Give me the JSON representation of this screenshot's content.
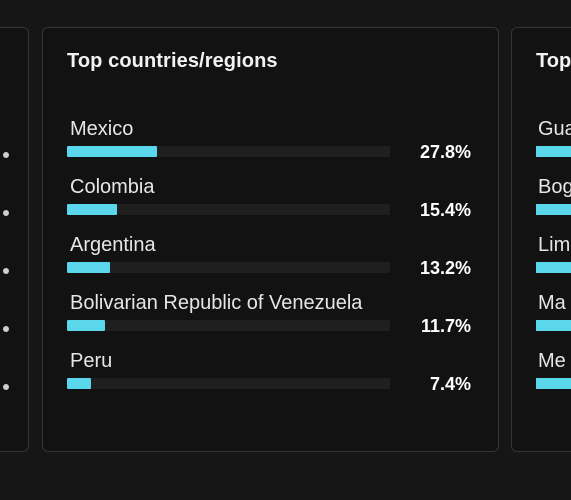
{
  "colors": {
    "accent": "#5ad7ea",
    "track": "#1f1f1f"
  },
  "main_card": {
    "title": "Top countries/regions",
    "rows": [
      {
        "label": "Mexico",
        "percent_text": "27.8%",
        "value": 27.8
      },
      {
        "label": "Colombia",
        "percent_text": "15.4%",
        "value": 15.4
      },
      {
        "label": "Argentina",
        "percent_text": "13.2%",
        "value": 13.2
      },
      {
        "label": "Bolivarian Republic of Venezuela",
        "percent_text": "11.7%",
        "value": 11.7
      },
      {
        "label": "Peru",
        "percent_text": "7.4%",
        "value": 7.4
      }
    ]
  },
  "right_card": {
    "title_visible": "Top",
    "rows": [
      {
        "label_visible": "Gua"
      },
      {
        "label_visible": "Bog"
      },
      {
        "label_visible": "Lim"
      },
      {
        "label_visible": "Ma"
      },
      {
        "label_visible": "Me"
      }
    ]
  }
}
